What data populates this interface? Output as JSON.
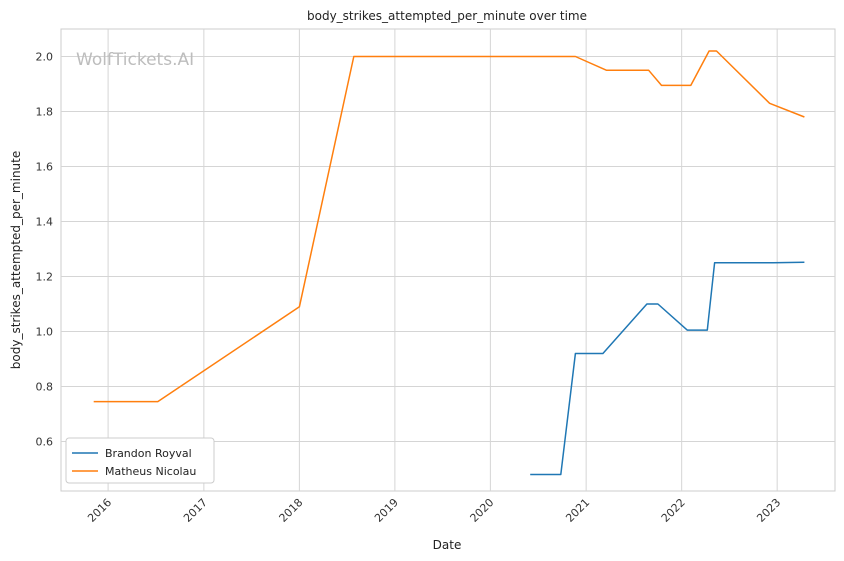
{
  "chart_data": {
    "type": "line",
    "title": "body_strikes_attempted_per_minute over time",
    "xlabel": "Date",
    "ylabel": "body_strikes_attempted_per_minute",
    "watermark": "WolfTickets.AI",
    "x_tick_labels": [
      "2016",
      "2017",
      "2018",
      "2019",
      "2020",
      "2021",
      "2022",
      "2023"
    ],
    "y_ticks": [
      0.6,
      0.8,
      1.0,
      1.2,
      1.4,
      1.6,
      1.8,
      2.0
    ],
    "y_tick_labels": [
      "0.6",
      "0.8",
      "1.0",
      "1.2",
      "1.4",
      "1.6",
      "1.8",
      "2.0"
    ],
    "xlim": [
      "2015-07-05",
      "2023-08-10"
    ],
    "ylim": [
      0.42,
      2.1
    ],
    "grid": true,
    "legend_position": "bottom-left",
    "series": [
      {
        "name": "Brandon Royval",
        "color": "#1f77b4",
        "points": [
          [
            "2020-06-01",
            0.48
          ],
          [
            "2020-09-26",
            0.48
          ],
          [
            "2020-11-21",
            0.92
          ],
          [
            "2021-03-06",
            0.92
          ],
          [
            "2021-08-21",
            1.1
          ],
          [
            "2021-10-02",
            1.1
          ],
          [
            "2022-01-22",
            1.005
          ],
          [
            "2022-04-09",
            1.005
          ],
          [
            "2022-05-07",
            1.25
          ],
          [
            "2022-12-17",
            1.25
          ],
          [
            "2023-04-15",
            1.252
          ]
        ]
      },
      {
        "name": "Matheus Nicolau",
        "color": "#ff7f0e",
        "points": [
          [
            "2015-11-07",
            0.745
          ],
          [
            "2016-07-09",
            0.745
          ],
          [
            "2018-01-01",
            1.09
          ],
          [
            "2018-07-28",
            2.0
          ],
          [
            "2020-11-21",
            2.0
          ],
          [
            "2021-03-20",
            1.95
          ],
          [
            "2021-08-28",
            1.95
          ],
          [
            "2021-10-16",
            1.895
          ],
          [
            "2022-02-05",
            1.895
          ],
          [
            "2022-04-16",
            2.02
          ],
          [
            "2022-05-14",
            2.02
          ],
          [
            "2022-12-03",
            1.83
          ],
          [
            "2023-04-15",
            1.78
          ]
        ]
      }
    ]
  }
}
